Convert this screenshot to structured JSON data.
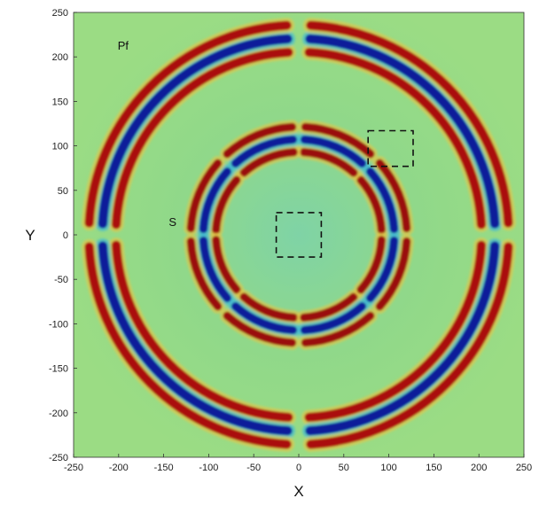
{
  "chart_data": {
    "type": "heatmap",
    "title": "",
    "xlabel": "X",
    "ylabel": "Y",
    "xlim": [
      -250,
      250
    ],
    "ylim": [
      -250,
      250
    ],
    "xticks": [
      -250,
      -200,
      -150,
      -100,
      -50,
      0,
      50,
      100,
      150,
      200,
      250
    ],
    "yticks": [
      250,
      200,
      150,
      100,
      50,
      0,
      -50,
      -100,
      -150,
      -200,
      -250
    ],
    "xtick_labels": [
      "-250",
      "-200",
      "-150",
      "-100",
      "-50",
      "0",
      "50",
      "100",
      "150",
      "200",
      "250"
    ],
    "ytick_labels": [
      "250",
      "200",
      "150",
      "100",
      "50",
      "0",
      "-50",
      "-100",
      "-150",
      "-200",
      "-250"
    ],
    "grid": false,
    "colormap": "jet",
    "background_color": "#8fd88a",
    "annotations": [
      {
        "text": "Pf",
        "x": -195,
        "y": 208
      },
      {
        "text": "S",
        "x": -140,
        "y": 10
      }
    ],
    "wavefronts": [
      {
        "name": "Pf",
        "radii": [
          203,
          218,
          233
        ],
        "colors": [
          "#aa1010",
          "#0c1a9a",
          "#aa1010"
        ],
        "band_width": 10,
        "notch_angles_deg": [
          0,
          90,
          180,
          270
        ]
      },
      {
        "name": "S",
        "radii": [
          92,
          106,
          120
        ],
        "colors": [
          "#9a0c0c",
          "#0c1a9a",
          "#9a0c0c"
        ],
        "band_width": 9,
        "notch_angles_deg": [
          0,
          45,
          90,
          135,
          180,
          225,
          270,
          315
        ]
      }
    ],
    "dashed_boxes": [
      {
        "x0": -25,
        "x1": 25,
        "y0": -25,
        "y1": 25
      },
      {
        "x0": 77,
        "x1": 127,
        "y0": 77,
        "y1": 117
      }
    ]
  }
}
